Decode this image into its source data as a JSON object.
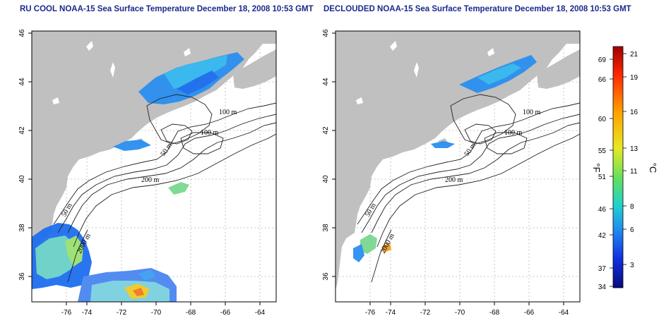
{
  "maps": [
    {
      "title": "RU COOL NOAA-15 Sea Surface Temperature December 18, 2008 10:53 GMT",
      "contour_labels": [
        "100 m",
        "100 m",
        "50 m",
        "200 m",
        "50 m",
        "2000 m"
      ]
    },
    {
      "title": "DECLOUDED NOAA-15 Sea Surface Temperature December 18, 2008 10:53 GMT",
      "contour_labels": [
        "100 m",
        "100 m",
        "50 m",
        "200 m",
        "50 m",
        "2000 m"
      ]
    }
  ],
  "axes": {
    "lon_ticks": [
      "-76",
      "-74",
      "-72",
      "-70",
      "-68",
      "-66",
      "-64"
    ],
    "lat_ticks": [
      "36",
      "38",
      "40",
      "42",
      "44",
      "46"
    ]
  },
  "colorbar": {
    "fahrenheit_unit": "°F",
    "celsius_unit": "°C",
    "fahrenheit_ticks": [
      "69",
      "66",
      "60",
      "55",
      "51",
      "46",
      "42",
      "37",
      "34"
    ],
    "celsius_ticks": [
      "21",
      "19",
      "16",
      "13",
      "11",
      "8",
      "6",
      "3"
    ],
    "gradient_colors": [
      "#a00000",
      "#ff2a00",
      "#ffa000",
      "#e8e820",
      "#60e060",
      "#20d0d0",
      "#1e8cf0",
      "#1030e0",
      "#0a0a80"
    ]
  },
  "colors": {
    "land": "#c0c0c0",
    "ocean": "#ffffff",
    "grid": "#b8b8b8"
  }
}
